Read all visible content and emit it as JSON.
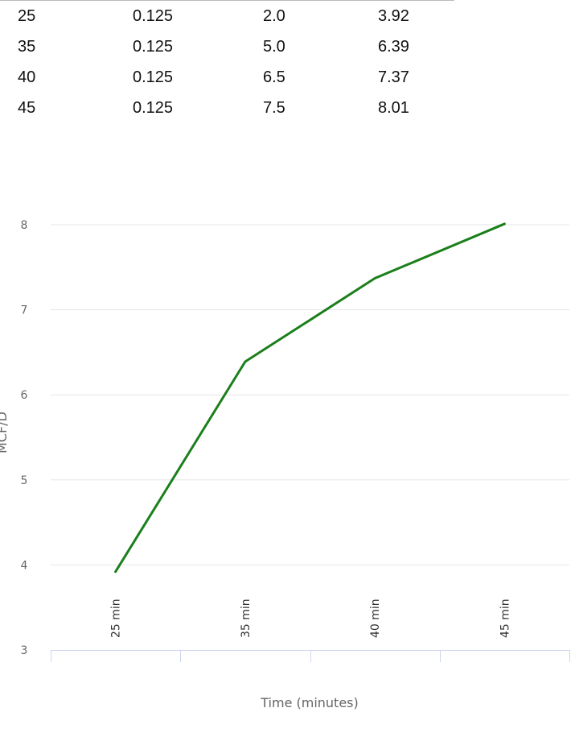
{
  "table": {
    "rows": [
      [
        "25",
        "0.125",
        "2.0",
        "3.92"
      ],
      [
        "35",
        "0.125",
        "5.0",
        "6.39"
      ],
      [
        "40",
        "0.125",
        "6.5",
        "7.37"
      ],
      [
        "45",
        "0.125",
        "7.5",
        "8.01"
      ]
    ]
  },
  "chart_data": {
    "type": "line",
    "x_label": "Time (minutes)",
    "y_label": "MCF/D",
    "categories": [
      "25 min",
      "35 min",
      "40 min",
      "45 min"
    ],
    "series": [
      {
        "name": "MCF/D",
        "color": "#1a7f1a",
        "values": [
          3.92,
          6.39,
          7.37,
          8.01
        ]
      }
    ],
    "ylim": [
      3,
      8
    ],
    "yticks": [
      3,
      4,
      5,
      6,
      7,
      8
    ],
    "grid": true
  }
}
